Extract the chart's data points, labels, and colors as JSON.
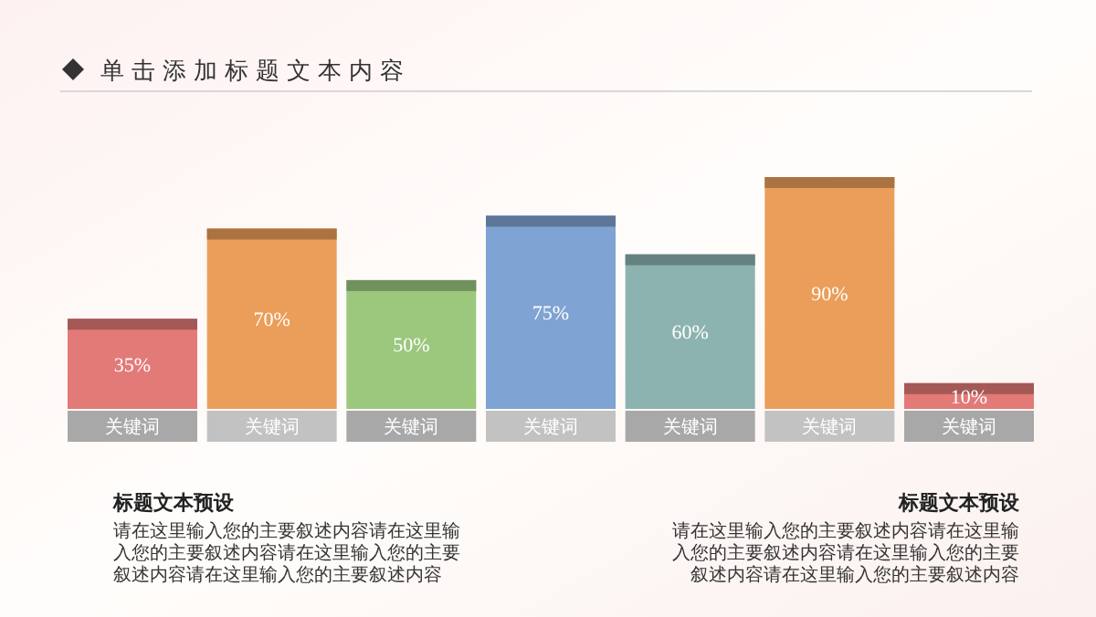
{
  "chart_data": {
    "type": "bar",
    "title": "单击添加标题文本内容",
    "categories": [
      "关键词",
      "关键词",
      "关键词",
      "关键词",
      "关键词",
      "关键词",
      "关键词"
    ],
    "values": [
      35,
      70,
      50,
      75,
      60,
      90,
      10
    ],
    "colors": [
      "#e27a78",
      "#eb9e5a",
      "#9bc87d",
      "#7fa3d2",
      "#8cb3b0",
      "#eb9e5a",
      "#e27a78"
    ],
    "value_labels": [
      "35%",
      "70%",
      "50%",
      "75%",
      "60%",
      "90%",
      "10%"
    ],
    "annotations": [
      "标题文本预设",
      "请在这里输入您的主要叙述内容请在这里输入您的主要叙述内容请在这里输入您的主要叙述内容请在这里输入您的主要叙述内容",
      "标题文本预设",
      "请在这里输入您的主要叙述内容请在这里输入您的主要叙述内容请在这里输入您的主要叙述内容请在这里输入您的主要叙述内容"
    ]
  }
}
